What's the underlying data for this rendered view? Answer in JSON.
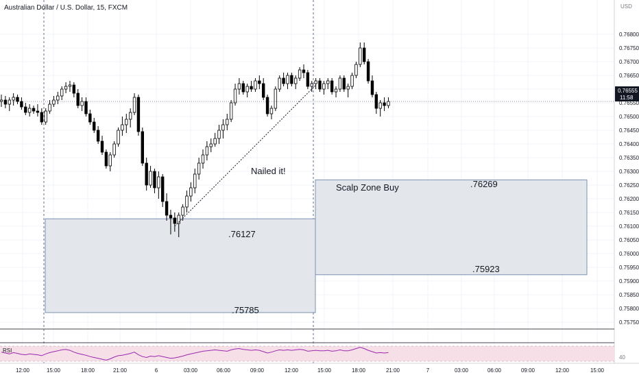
{
  "header": {
    "symbol_title": "Australian Dollar / U.S. Dollar, 15, FXCM"
  },
  "price_axis": {
    "currency": "USD",
    "ticks": [
      "0.76800",
      "0.76750",
      "0.76700",
      "0.76650",
      "0.76600",
      "0.76550",
      "0.76500",
      "0.76450",
      "0.76400",
      "0.76350",
      "0.76300",
      "0.76250",
      "0.76200",
      "0.76150",
      "0.76100",
      "0.76050",
      "0.76000",
      "0.75950",
      "0.75900",
      "0.75850",
      "0.75800",
      "0.75750"
    ],
    "last_price": "0.76555",
    "countdown": "11:58"
  },
  "time_axis": {
    "ticks": [
      "12:00",
      "15:00",
      "18:00",
      "21:00",
      "6",
      "03:00",
      "06:00",
      "09:00",
      "12:00",
      "15:00",
      "18:00",
      "21:00",
      "7",
      "03:00",
      "06:00",
      "09:00",
      "12:00",
      "15:00"
    ]
  },
  "rsi": {
    "label": "RSI",
    "level_label": "40"
  },
  "annotations": {
    "callout": "Nailed it!",
    "zone_title": "Scalp Zone Buy",
    "zone1_top": ".76127",
    "zone1_bottom": ".75785",
    "zone2_top": ".76269",
    "zone2_bottom": ".75923"
  },
  "colors": {
    "candle": "#000000",
    "zone_fill": "#e3e7ec",
    "zone_border": "#7b8fb0",
    "rsi_band": "#f6dfe6",
    "rsi_line": "#9c27b0",
    "session_line": "#5d6f8f",
    "last_price_bg": "#131722"
  },
  "chart_data": {
    "type": "candlestick",
    "title": "Australian Dollar / U.S. Dollar, 15, FXCM",
    "ylim": [
      0.7574,
      0.7683
    ],
    "candles": [
      [
        0.76555,
        0.7658,
        0.76535,
        0.7656
      ],
      [
        0.7656,
        0.76575,
        0.7653,
        0.76545
      ],
      [
        0.76545,
        0.7657,
        0.7652,
        0.7656
      ],
      [
        0.7656,
        0.76585,
        0.7654,
        0.7657
      ],
      [
        0.7657,
        0.7658,
        0.76545,
        0.76555
      ],
      [
        0.76555,
        0.7657,
        0.76525,
        0.76535
      ],
      [
        0.76535,
        0.7655,
        0.76505,
        0.76515
      ],
      [
        0.76515,
        0.76545,
        0.765,
        0.7653
      ],
      [
        0.7653,
        0.7654,
        0.7651,
        0.7652
      ],
      [
        0.7652,
        0.76545,
        0.765,
        0.76515
      ],
      [
        0.76515,
        0.7653,
        0.7647,
        0.7648
      ],
      [
        0.7648,
        0.7653,
        0.7647,
        0.7652
      ],
      [
        0.7652,
        0.7656,
        0.7651,
        0.76545
      ],
      [
        0.76545,
        0.76575,
        0.76535,
        0.7656
      ],
      [
        0.7656,
        0.7659,
        0.76545,
        0.76575
      ],
      [
        0.76575,
        0.7661,
        0.7656,
        0.766
      ],
      [
        0.766,
        0.76625,
        0.76585,
        0.7661
      ],
      [
        0.7661,
        0.7663,
        0.7659,
        0.76615
      ],
      [
        0.76615,
        0.76625,
        0.7657,
        0.76585
      ],
      [
        0.76585,
        0.766,
        0.7653,
        0.7654
      ],
      [
        0.7654,
        0.7657,
        0.7652,
        0.76555
      ],
      [
        0.76555,
        0.7657,
        0.765,
        0.7651
      ],
      [
        0.7651,
        0.76525,
        0.7647,
        0.7648
      ],
      [
        0.7648,
        0.76495,
        0.7644,
        0.7645
      ],
      [
        0.7645,
        0.76465,
        0.764,
        0.7641
      ],
      [
        0.7641,
        0.7643,
        0.7636,
        0.7637
      ],
      [
        0.7637,
        0.7638,
        0.7631,
        0.7632
      ],
      [
        0.7632,
        0.7637,
        0.763,
        0.7636
      ],
      [
        0.7636,
        0.7641,
        0.7635,
        0.764
      ],
      [
        0.764,
        0.7646,
        0.7639,
        0.7645
      ],
      [
        0.7645,
        0.765,
        0.7643,
        0.7647
      ],
      [
        0.7647,
        0.7651,
        0.7644,
        0.7649
      ],
      [
        0.7649,
        0.7653,
        0.7646,
        0.76515
      ],
      [
        0.76515,
        0.76585,
        0.76505,
        0.7657
      ],
      [
        0.7657,
        0.7658,
        0.7643,
        0.76445
      ],
      [
        0.76445,
        0.7646,
        0.7632,
        0.7633
      ],
      [
        0.7633,
        0.7635,
        0.7623,
        0.7625
      ],
      [
        0.7625,
        0.7632,
        0.7624,
        0.763
      ],
      [
        0.763,
        0.7631,
        0.7622,
        0.7624
      ],
      [
        0.7624,
        0.763,
        0.762,
        0.7628
      ],
      [
        0.7628,
        0.7629,
        0.7617,
        0.7619
      ],
      [
        0.7619,
        0.7622,
        0.7612,
        0.7614
      ],
      [
        0.7614,
        0.7616,
        0.7607,
        0.7613
      ],
      [
        0.7613,
        0.7615,
        0.7608,
        0.7611
      ],
      [
        0.7611,
        0.7615,
        0.7606,
        0.7614
      ],
      [
        0.7614,
        0.7618,
        0.7612,
        0.7617
      ],
      [
        0.7617,
        0.7623,
        0.7615,
        0.7621
      ],
      [
        0.7621,
        0.7626,
        0.7619,
        0.7624
      ],
      [
        0.7624,
        0.7631,
        0.7622,
        0.7629
      ],
      [
        0.7629,
        0.7635,
        0.7627,
        0.7633
      ],
      [
        0.7633,
        0.7638,
        0.7631,
        0.7636
      ],
      [
        0.7636,
        0.7641,
        0.7634,
        0.7639
      ],
      [
        0.7639,
        0.7642,
        0.7637,
        0.764
      ],
      [
        0.764,
        0.7644,
        0.7639,
        0.7642
      ],
      [
        0.7642,
        0.7647,
        0.764,
        0.7645
      ],
      [
        0.7645,
        0.7649,
        0.7642,
        0.7647
      ],
      [
        0.7647,
        0.7651,
        0.7645,
        0.7649
      ],
      [
        0.7649,
        0.7656,
        0.7648,
        0.7655
      ],
      [
        0.7655,
        0.7662,
        0.7654,
        0.766
      ],
      [
        0.766,
        0.7664,
        0.7658,
        0.7662
      ],
      [
        0.7662,
        0.7663,
        0.7658,
        0.7659
      ],
      [
        0.7659,
        0.7662,
        0.7657,
        0.7661
      ],
      [
        0.7661,
        0.7663,
        0.7659,
        0.766
      ],
      [
        0.766,
        0.7664,
        0.7659,
        0.7663
      ],
      [
        0.7663,
        0.7665,
        0.766,
        0.7662
      ],
      [
        0.7662,
        0.7664,
        0.7656,
        0.7657
      ],
      [
        0.7657,
        0.7658,
        0.765,
        0.7651
      ],
      [
        0.7651,
        0.7654,
        0.7649,
        0.7653
      ],
      [
        0.7653,
        0.7661,
        0.7652,
        0.766
      ],
      [
        0.766,
        0.7665,
        0.7659,
        0.7664
      ],
      [
        0.7664,
        0.7666,
        0.7661,
        0.7662
      ],
      [
        0.7662,
        0.7666,
        0.766,
        0.7665
      ],
      [
        0.7665,
        0.7666,
        0.7661,
        0.7662
      ],
      [
        0.7662,
        0.7665,
        0.766,
        0.7664
      ],
      [
        0.7664,
        0.7668,
        0.7663,
        0.7667
      ],
      [
        0.7667,
        0.7669,
        0.7664,
        0.7666
      ],
      [
        0.7666,
        0.7667,
        0.766,
        0.7661
      ],
      [
        0.7661,
        0.7663,
        0.7659,
        0.7662
      ],
      [
        0.7662,
        0.7664,
        0.766,
        0.7663
      ],
      [
        0.7663,
        0.7664,
        0.7659,
        0.766
      ],
      [
        0.766,
        0.7663,
        0.7658,
        0.7662
      ],
      [
        0.7662,
        0.7664,
        0.766,
        0.7663
      ],
      [
        0.7663,
        0.7664,
        0.7658,
        0.7659
      ],
      [
        0.7659,
        0.7661,
        0.7657,
        0.766
      ],
      [
        0.766,
        0.7665,
        0.7659,
        0.7664
      ],
      [
        0.7664,
        0.7665,
        0.7659,
        0.766
      ],
      [
        0.766,
        0.7662,
        0.7657,
        0.7661
      ],
      [
        0.7661,
        0.7666,
        0.766,
        0.7665
      ],
      [
        0.7665,
        0.767,
        0.7664,
        0.7669
      ],
      [
        0.7669,
        0.7677,
        0.7668,
        0.7675
      ],
      [
        0.7675,
        0.7677,
        0.7669,
        0.767
      ],
      [
        0.767,
        0.7671,
        0.7662,
        0.7663
      ],
      [
        0.7663,
        0.7665,
        0.7657,
        0.7658
      ],
      [
        0.7658,
        0.7659,
        0.7651,
        0.7653
      ],
      [
        0.7653,
        0.7656,
        0.765,
        0.7655
      ],
      [
        0.7655,
        0.7657,
        0.7652,
        0.7654
      ],
      [
        0.7654,
        0.7657,
        0.7653,
        0.76555
      ]
    ],
    "zones": [
      {
        "top": 0.76127,
        "bottom": 0.75785
      },
      {
        "top": 0.76269,
        "bottom": 0.75923
      }
    ],
    "rsi": [
      52,
      50,
      48,
      51,
      49,
      47,
      46,
      48,
      47,
      46,
      44,
      48,
      51,
      53,
      55,
      57,
      58,
      56,
      52,
      49,
      47,
      45,
      42,
      40,
      38,
      36,
      34,
      37,
      41,
      44,
      45,
      47,
      49,
      52,
      46,
      42,
      40,
      43,
      42,
      44,
      42,
      40,
      38,
      39,
      41,
      43,
      46,
      48,
      50,
      52,
      54,
      55,
      56,
      57,
      56,
      55,
      54,
      57,
      59,
      60,
      58,
      57,
      56,
      57,
      56,
      53,
      50,
      52,
      55,
      57,
      56,
      57,
      56,
      57,
      58,
      57,
      54,
      55,
      56,
      55,
      55,
      56,
      54,
      55,
      57,
      55,
      55,
      57,
      60,
      63,
      60,
      56,
      53,
      50,
      51,
      50,
      51
    ]
  }
}
